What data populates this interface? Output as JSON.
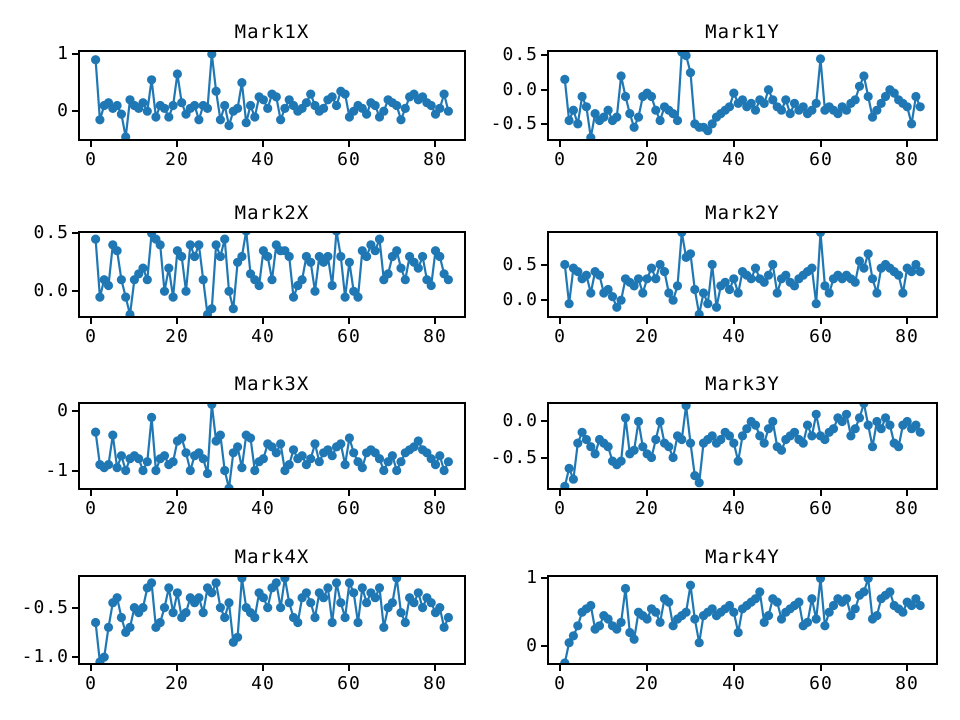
{
  "figure": {
    "background": "#ffffff",
    "series_color": "#1f77b4",
    "spine_color": "#000000"
  },
  "chart_data": [
    {
      "type": "line",
      "title": "Mark1X",
      "marker": "circle",
      "color": "#1f77b4",
      "grid": false,
      "legend": null,
      "x_start": 1,
      "x_step": 1,
      "xlim": [
        -3.1,
        87.1
      ],
      "ylim": [
        -0.52,
        1.07
      ],
      "xticks": [
        {
          "value": 0,
          "label": "0"
        },
        {
          "value": 20,
          "label": "20"
        },
        {
          "value": 40,
          "label": "40"
        },
        {
          "value": 60,
          "label": "60"
        },
        {
          "value": 80,
          "label": "80"
        }
      ],
      "yticks": [
        {
          "value": 1,
          "label": "1"
        },
        {
          "value": 0,
          "label": "0"
        }
      ],
      "values": [
        0.9,
        -0.15,
        0.1,
        0.15,
        0.05,
        0.1,
        -0.05,
        -0.45,
        0.2,
        0.1,
        0.05,
        0.15,
        0.0,
        0.55,
        -0.1,
        0.1,
        0.05,
        -0.1,
        0.1,
        0.65,
        0.15,
        -0.05,
        0.05,
        0.1,
        -0.15,
        0.1,
        0.05,
        1.0,
        0.35,
        -0.15,
        0.1,
        -0.25,
        0.0,
        0.05,
        0.5,
        -0.2,
        0.1,
        -0.1,
        0.25,
        0.2,
        0.05,
        0.3,
        0.25,
        -0.15,
        0.05,
        0.2,
        0.1,
        0.0,
        0.05,
        0.15,
        0.3,
        0.1,
        0.0,
        0.05,
        0.2,
        0.25,
        0.1,
        0.35,
        0.3,
        -0.1,
        0.0,
        0.1,
        0.05,
        -0.05,
        0.15,
        0.1,
        -0.1,
        0.0,
        0.2,
        0.15,
        0.1,
        -0.15,
        0.05,
        0.25,
        0.3,
        0.2,
        0.25,
        0.15,
        0.1,
        -0.05,
        0.05,
        0.3,
        0.0
      ]
    },
    {
      "type": "line",
      "title": "Mark1Y",
      "marker": "circle",
      "color": "#1f77b4",
      "grid": false,
      "legend": null,
      "x_start": 1,
      "x_step": 1,
      "xlim": [
        -3.1,
        87.1
      ],
      "ylim": [
        -0.75,
        0.58
      ],
      "xticks": [
        {
          "value": 0,
          "label": "0"
        },
        {
          "value": 20,
          "label": "20"
        },
        {
          "value": 40,
          "label": "40"
        },
        {
          "value": 60,
          "label": "60"
        },
        {
          "value": 80,
          "label": "80"
        }
      ],
      "yticks": [
        {
          "value": 0.5,
          "label": "0.5"
        },
        {
          "value": 0.0,
          "label": "0.0"
        },
        {
          "value": -0.5,
          "label": "-0.5"
        }
      ],
      "values": [
        0.15,
        -0.45,
        -0.3,
        -0.5,
        -0.1,
        -0.25,
        -0.7,
        -0.35,
        -0.45,
        -0.4,
        -0.3,
        -0.45,
        -0.4,
        0.2,
        -0.1,
        -0.35,
        -0.55,
        -0.4,
        -0.1,
        -0.05,
        -0.1,
        -0.3,
        -0.45,
        -0.25,
        -0.3,
        -0.35,
        -0.45,
        0.55,
        0.5,
        0.25,
        -0.5,
        -0.55,
        -0.55,
        -0.6,
        -0.5,
        -0.4,
        -0.35,
        -0.3,
        -0.25,
        -0.05,
        -0.2,
        -0.15,
        -0.25,
        -0.2,
        -0.3,
        -0.15,
        -0.2,
        0.0,
        -0.15,
        -0.25,
        -0.3,
        -0.15,
        -0.35,
        -0.2,
        -0.3,
        -0.25,
        -0.35,
        -0.3,
        -0.2,
        0.45,
        -0.3,
        -0.25,
        -0.3,
        -0.35,
        -0.25,
        -0.3,
        -0.2,
        -0.15,
        0.05,
        0.2,
        -0.1,
        -0.4,
        -0.3,
        -0.2,
        -0.1,
        0.0,
        -0.05,
        -0.15,
        -0.2,
        -0.25,
        -0.5,
        -0.1,
        -0.25
      ]
    },
    {
      "type": "line",
      "title": "Mark2X",
      "marker": "circle",
      "color": "#1f77b4",
      "grid": false,
      "legend": null,
      "x_start": 1,
      "x_step": 1,
      "xlim": [
        -3.1,
        87.1
      ],
      "ylim": [
        -0.23,
        0.52
      ],
      "xticks": [
        {
          "value": 0,
          "label": "0"
        },
        {
          "value": 20,
          "label": "20"
        },
        {
          "value": 40,
          "label": "40"
        },
        {
          "value": 60,
          "label": "60"
        },
        {
          "value": 80,
          "label": "80"
        }
      ],
      "yticks": [
        {
          "value": 0.5,
          "label": "0.5"
        },
        {
          "value": 0.0,
          "label": "0.0"
        }
      ],
      "values": [
        0.45,
        -0.05,
        0.1,
        0.05,
        0.4,
        0.35,
        0.1,
        -0.05,
        -0.2,
        0.1,
        0.15,
        0.2,
        0.1,
        0.5,
        0.45,
        0.4,
        0.0,
        0.2,
        -0.05,
        0.35,
        0.3,
        0.0,
        0.4,
        0.3,
        0.4,
        0.1,
        -0.2,
        -0.15,
        0.4,
        0.3,
        0.45,
        0.0,
        -0.15,
        0.25,
        0.3,
        0.52,
        0.15,
        0.1,
        0.05,
        0.35,
        0.3,
        0.1,
        0.4,
        0.35,
        0.35,
        0.3,
        -0.05,
        0.05,
        0.1,
        0.3,
        0.25,
        0.0,
        0.3,
        0.25,
        0.3,
        0.05,
        0.52,
        0.3,
        -0.05,
        0.25,
        0.0,
        -0.05,
        0.35,
        0.3,
        0.4,
        0.35,
        0.45,
        0.1,
        0.15,
        0.3,
        0.35,
        0.2,
        0.1,
        0.3,
        0.25,
        0.2,
        0.3,
        0.1,
        0.05,
        0.35,
        0.3,
        0.15,
        0.1
      ]
    },
    {
      "type": "line",
      "title": "Mark2Y",
      "marker": "circle",
      "color": "#1f77b4",
      "grid": false,
      "legend": null,
      "x_start": 1,
      "x_step": 1,
      "xlim": [
        -3.1,
        87.1
      ],
      "ylim": [
        -0.25,
        0.97
      ],
      "xticks": [
        {
          "value": 0,
          "label": "0"
        },
        {
          "value": 20,
          "label": "20"
        },
        {
          "value": 40,
          "label": "40"
        },
        {
          "value": 60,
          "label": "60"
        },
        {
          "value": 80,
          "label": "80"
        }
      ],
      "yticks": [
        {
          "value": 0.5,
          "label": "0.5"
        },
        {
          "value": 0.0,
          "label": "0.0"
        }
      ],
      "values": [
        0.5,
        -0.05,
        0.45,
        0.4,
        0.3,
        0.35,
        0.1,
        0.4,
        0.35,
        0.1,
        0.15,
        0.05,
        -0.1,
        0.0,
        0.3,
        0.25,
        0.2,
        0.3,
        0.1,
        0.3,
        0.45,
        0.3,
        0.5,
        0.4,
        0.1,
        0.0,
        0.2,
        0.95,
        0.6,
        0.65,
        0.15,
        -0.2,
        0.1,
        -0.05,
        0.5,
        -0.1,
        0.2,
        0.25,
        0.15,
        0.3,
        0.1,
        0.4,
        0.35,
        0.3,
        0.45,
        0.3,
        0.25,
        0.35,
        0.5,
        0.1,
        0.3,
        0.35,
        0.25,
        0.2,
        0.3,
        0.35,
        0.4,
        0.45,
        -0.05,
        0.95,
        0.2,
        0.1,
        0.3,
        0.35,
        0.3,
        0.35,
        0.3,
        0.25,
        0.55,
        0.45,
        0.65,
        0.3,
        0.1,
        0.45,
        0.5,
        0.45,
        0.4,
        0.35,
        0.1,
        0.45,
        0.4,
        0.5,
        0.4
      ]
    },
    {
      "type": "line",
      "title": "Mark3X",
      "marker": "circle",
      "color": "#1f77b4",
      "grid": false,
      "legend": null,
      "x_start": 1,
      "x_step": 1,
      "xlim": [
        -3.1,
        87.1
      ],
      "ylim": [
        -1.33,
        0.16
      ],
      "xticks": [
        {
          "value": 0,
          "label": "0"
        },
        {
          "value": 20,
          "label": "20"
        },
        {
          "value": 40,
          "label": "40"
        },
        {
          "value": 60,
          "label": "60"
        },
        {
          "value": 80,
          "label": "80"
        }
      ],
      "yticks": [
        {
          "value": 0,
          "label": "0"
        },
        {
          "value": -1,
          "label": "-1"
        }
      ],
      "values": [
        -0.35,
        -0.9,
        -0.95,
        -0.9,
        -0.4,
        -0.95,
        -0.75,
        -1.0,
        -0.8,
        -0.75,
        -0.8,
        -1.0,
        -0.85,
        -0.1,
        -1.0,
        -0.8,
        -0.75,
        -0.9,
        -0.85,
        -0.5,
        -0.45,
        -0.7,
        -1.0,
        -0.75,
        -0.7,
        -0.8,
        -1.05,
        0.12,
        -0.5,
        -0.4,
        -1.0,
        -1.3,
        -0.7,
        -0.6,
        -0.95,
        -0.4,
        -0.45,
        -1.0,
        -0.85,
        -0.8,
        -0.55,
        -0.6,
        -0.7,
        -0.55,
        -1.0,
        -0.9,
        -0.65,
        -0.8,
        -0.75,
        -0.9,
        -0.8,
        -0.55,
        -0.85,
        -0.7,
        -0.65,
        -0.75,
        -0.6,
        -0.55,
        -0.9,
        -0.45,
        -0.7,
        -0.85,
        -0.95,
        -0.7,
        -0.65,
        -0.7,
        -0.8,
        -1.0,
        -0.85,
        -0.75,
        -1.0,
        -0.85,
        -0.7,
        -0.65,
        -0.6,
        -0.5,
        -0.65,
        -0.7,
        -0.8,
        -0.9,
        -0.75,
        -1.0,
        -0.85
      ]
    },
    {
      "type": "line",
      "title": "Mark3Y",
      "marker": "circle",
      "color": "#1f77b4",
      "grid": false,
      "legend": null,
      "x_start": 1,
      "x_step": 1,
      "xlim": [
        -3.1,
        87.1
      ],
      "ylim": [
        -0.95,
        0.27
      ],
      "xticks": [
        {
          "value": 0,
          "label": "0"
        },
        {
          "value": 20,
          "label": "20"
        },
        {
          "value": 40,
          "label": "40"
        },
        {
          "value": 60,
          "label": "60"
        },
        {
          "value": 80,
          "label": "80"
        }
      ],
      "yticks": [
        {
          "value": 0.0,
          "label": "0.0"
        },
        {
          "value": -0.5,
          "label": "-0.5"
        }
      ],
      "values": [
        -0.9,
        -0.65,
        -0.8,
        -0.3,
        -0.15,
        -0.25,
        -0.35,
        -0.45,
        -0.25,
        -0.3,
        -0.35,
        -0.55,
        -0.6,
        -0.55,
        0.05,
        -0.45,
        -0.4,
        0.0,
        -0.35,
        -0.45,
        -0.5,
        -0.25,
        0.0,
        -0.3,
        -0.35,
        -0.5,
        -0.2,
        -0.25,
        0.22,
        -0.3,
        -0.75,
        -0.85,
        -0.3,
        -0.25,
        -0.2,
        -0.3,
        -0.25,
        -0.15,
        -0.2,
        -0.3,
        -0.55,
        -0.2,
        -0.1,
        0.0,
        -0.05,
        -0.2,
        -0.3,
        -0.1,
        0.0,
        -0.35,
        -0.4,
        -0.25,
        -0.2,
        -0.15,
        -0.25,
        -0.3,
        -0.05,
        -0.2,
        0.1,
        -0.2,
        -0.25,
        -0.15,
        -0.1,
        0.05,
        0.0,
        0.1,
        -0.2,
        -0.1,
        0.05,
        0.25,
        -0.05,
        -0.35,
        0.0,
        -0.1,
        0.05,
        -0.05,
        -0.3,
        -0.35,
        -0.05,
        0.0,
        -0.1,
        -0.05,
        -0.15
      ]
    },
    {
      "type": "line",
      "title": "Mark4X",
      "marker": "circle",
      "color": "#1f77b4",
      "grid": false,
      "legend": null,
      "x_start": 1,
      "x_step": 1,
      "xlim": [
        -3.1,
        87.1
      ],
      "ylim": [
        -1.08,
        -0.17
      ],
      "xticks": [
        {
          "value": 0,
          "label": "0"
        },
        {
          "value": 20,
          "label": "20"
        },
        {
          "value": 40,
          "label": "40"
        },
        {
          "value": 60,
          "label": "60"
        },
        {
          "value": 80,
          "label": "80"
        }
      ],
      "yticks": [
        {
          "value": -0.5,
          "label": "-0.5"
        },
        {
          "value": -1.0,
          "label": "-1.0"
        }
      ],
      "values": [
        -0.65,
        -1.05,
        -1.0,
        -0.7,
        -0.45,
        -0.4,
        -0.6,
        -0.75,
        -0.7,
        -0.5,
        -0.55,
        -0.5,
        -0.3,
        -0.25,
        -0.7,
        -0.65,
        -0.5,
        -0.3,
        -0.55,
        -0.35,
        -0.6,
        -0.55,
        -0.4,
        -0.45,
        -0.4,
        -0.55,
        -0.3,
        -0.35,
        -0.25,
        -0.5,
        -0.6,
        -0.45,
        -0.85,
        -0.8,
        -0.2,
        -0.5,
        -0.55,
        -0.6,
        -0.35,
        -0.4,
        -0.5,
        -0.3,
        -0.25,
        -0.5,
        -0.2,
        -0.45,
        -0.6,
        -0.65,
        -0.4,
        -0.35,
        -0.45,
        -0.6,
        -0.35,
        -0.4,
        -0.3,
        -0.65,
        -0.25,
        -0.45,
        -0.6,
        -0.25,
        -0.35,
        -0.65,
        -0.3,
        -0.45,
        -0.35,
        -0.4,
        -0.3,
        -0.7,
        -0.5,
        -0.45,
        -0.2,
        -0.55,
        -0.65,
        -0.4,
        -0.45,
        -0.35,
        -0.5,
        -0.4,
        -0.45,
        -0.55,
        -0.5,
        -0.7,
        -0.6
      ]
    },
    {
      "type": "line",
      "title": "Mark4Y",
      "marker": "circle",
      "color": "#1f77b4",
      "grid": false,
      "legend": null,
      "x_start": 1,
      "x_step": 1,
      "xlim": [
        -3.1,
        87.1
      ],
      "ylim": [
        -0.28,
        1.05
      ],
      "xticks": [
        {
          "value": 0,
          "label": "0"
        },
        {
          "value": 20,
          "label": "20"
        },
        {
          "value": 40,
          "label": "40"
        },
        {
          "value": 60,
          "label": "60"
        },
        {
          "value": 80,
          "label": "80"
        }
      ],
      "yticks": [
        {
          "value": 1,
          "label": "1"
        },
        {
          "value": 0,
          "label": "0"
        }
      ],
      "values": [
        -0.25,
        0.05,
        0.15,
        0.3,
        0.5,
        0.55,
        0.6,
        0.25,
        0.3,
        0.45,
        0.4,
        0.3,
        0.25,
        0.35,
        0.85,
        0.2,
        0.1,
        0.5,
        0.45,
        0.4,
        0.55,
        0.5,
        0.35,
        0.7,
        0.65,
        0.3,
        0.4,
        0.45,
        0.5,
        0.9,
        0.4,
        0.05,
        0.45,
        0.5,
        0.55,
        0.45,
        0.5,
        0.55,
        0.6,
        0.5,
        0.2,
        0.55,
        0.6,
        0.65,
        0.7,
        0.8,
        0.35,
        0.45,
        0.7,
        0.65,
        0.4,
        0.5,
        0.55,
        0.6,
        0.65,
        0.3,
        0.35,
        0.7,
        0.4,
        1.0,
        0.3,
        0.5,
        0.6,
        0.7,
        0.65,
        0.7,
        0.45,
        0.55,
        0.75,
        0.8,
        1.0,
        0.4,
        0.45,
        0.7,
        0.75,
        0.8,
        0.6,
        0.55,
        0.5,
        0.65,
        0.6,
        0.7,
        0.6
      ]
    }
  ]
}
